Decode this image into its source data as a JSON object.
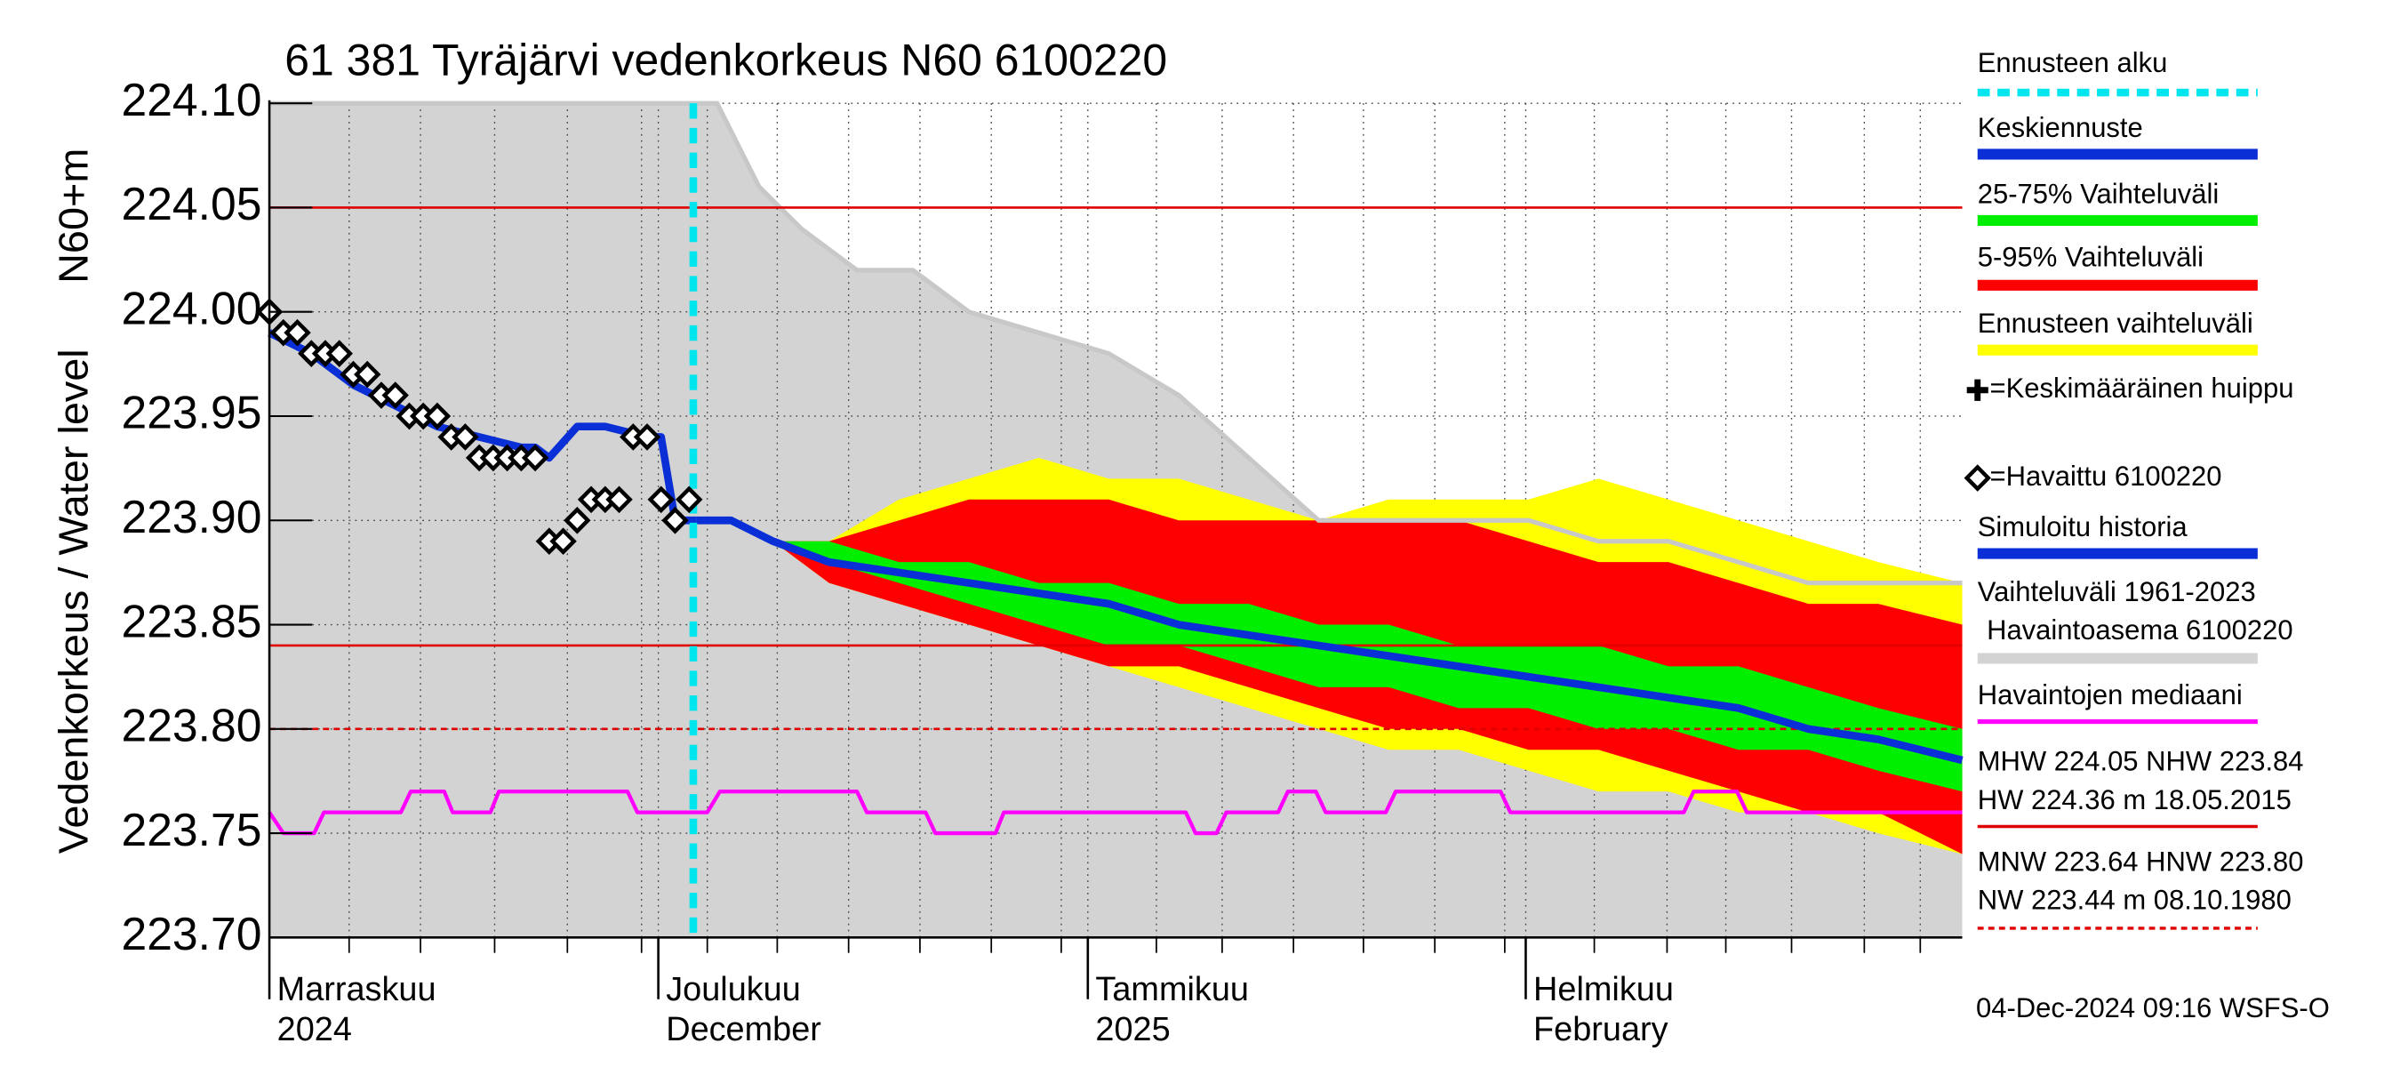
{
  "chart_data": {
    "type": "forecast",
    "title": "61 381 Tyräjärvi vedenkorkeus N60 6100220",
    "y_label": "Vedenkorkeus / Water level",
    "y_unit_label": "N60+m",
    "footer": "04-Dec-2024 09:16 WSFS-O",
    "xlim": [
      0,
      121
    ],
    "ylim": [
      223.7,
      224.1
    ],
    "yticks": [
      {
        "value": 224.1,
        "label": "224.10"
      },
      224.05,
      {
        "value": 224.0,
        "label": "224.00"
      },
      223.95,
      {
        "value": 223.9,
        "label": "223.90"
      },
      223.85,
      {
        "value": 223.8,
        "label": "223.80"
      },
      223.75,
      {
        "value": 223.7,
        "label": "223.70"
      }
    ],
    "xticks": [
      {
        "value": 0,
        "label": "Marraskuu",
        "sublabel": "2024"
      },
      {
        "value": 27.8,
        "label": "Joulukuu",
        "sublabel": "December"
      },
      {
        "value": 58.5,
        "label": "Tammikuu",
        "sublabel": "2025"
      },
      {
        "value": 89.8,
        "label": "Helmikuu",
        "sublabel": "February"
      }
    ],
    "xgrid": [
      5.7,
      10.8,
      16.1,
      21.3,
      26.6,
      31.3,
      36.3,
      41.4,
      46.5,
      51.6,
      56.6,
      63.4,
      68.1,
      73.2,
      78.2,
      83.3,
      88.3,
      94.7,
      99.9,
      104.1,
      108.8,
      114.0,
      118.0
    ],
    "grid": true,
    "forecast_start": {
      "name": "Ennusteen alku",
      "x": 30.3,
      "color": "#00e5ee"
    },
    "peak_label": "=Keskimääräinen huippu",
    "series": [
      {
        "name": "Vaihteluväli 1961-2023",
        "subname": "Havaintoasema 6100220",
        "kind": "area",
        "color": "#d3d3d3",
        "x": [
          0,
          30,
          32,
          35,
          38,
          42,
          46,
          50,
          55,
          60,
          65,
          70,
          75,
          80,
          85,
          90,
          95,
          100,
          105,
          110,
          115,
          121
        ],
        "values": [
          224.1,
          224.1,
          224.1,
          224.06,
          224.04,
          224.02,
          224.02,
          224.0,
          223.99,
          223.98,
          223.96,
          223.93,
          223.9,
          223.9,
          223.9,
          223.9,
          223.89,
          223.89,
          223.88,
          223.87,
          223.87,
          223.87
        ]
      },
      {
        "name": "Ennusteen vaihteluväli",
        "kind": "band",
        "color": "#ffff00",
        "x": [
          36,
          40,
          45,
          50,
          55,
          60,
          65,
          70,
          75,
          80,
          85,
          90,
          95,
          100,
          105,
          110,
          115,
          121
        ],
        "upper": [
          223.89,
          223.89,
          223.91,
          223.92,
          223.93,
          223.92,
          223.92,
          223.91,
          223.9,
          223.91,
          223.91,
          223.91,
          223.92,
          223.91,
          223.9,
          223.89,
          223.88,
          223.87
        ],
        "lower": [
          223.89,
          223.87,
          223.86,
          223.85,
          223.84,
          223.83,
          223.82,
          223.81,
          223.8,
          223.79,
          223.79,
          223.78,
          223.77,
          223.77,
          223.76,
          223.76,
          223.75,
          223.74
        ]
      },
      {
        "name": "5-95% Vaihteluväli",
        "kind": "band",
        "color": "#ff0000",
        "x": [
          36,
          40,
          45,
          50,
          55,
          60,
          65,
          70,
          75,
          80,
          85,
          90,
          95,
          100,
          105,
          110,
          115,
          121
        ],
        "upper": [
          223.89,
          223.89,
          223.9,
          223.91,
          223.91,
          223.91,
          223.9,
          223.9,
          223.9,
          223.9,
          223.9,
          223.89,
          223.88,
          223.88,
          223.87,
          223.86,
          223.86,
          223.85
        ],
        "lower": [
          223.89,
          223.87,
          223.86,
          223.85,
          223.84,
          223.83,
          223.83,
          223.82,
          223.81,
          223.8,
          223.8,
          223.79,
          223.79,
          223.78,
          223.77,
          223.76,
          223.76,
          223.74
        ]
      },
      {
        "name": "25-75% Vaihteluväli",
        "kind": "band",
        "color": "#00ee00",
        "x": [
          36,
          40,
          45,
          50,
          55,
          60,
          65,
          70,
          75,
          80,
          85,
          90,
          95,
          100,
          105,
          110,
          115,
          121
        ],
        "upper": [
          223.89,
          223.89,
          223.88,
          223.88,
          223.87,
          223.87,
          223.86,
          223.86,
          223.85,
          223.85,
          223.84,
          223.84,
          223.84,
          223.83,
          223.83,
          223.82,
          223.81,
          223.8
        ],
        "lower": [
          223.89,
          223.88,
          223.87,
          223.86,
          223.85,
          223.84,
          223.84,
          223.83,
          223.82,
          223.82,
          223.81,
          223.81,
          223.8,
          223.8,
          223.79,
          223.79,
          223.78,
          223.77
        ]
      },
      {
        "name": "Havaintojen mediaani",
        "kind": "line",
        "color": "#ff00ff",
        "width": 2.5,
        "x": [
          0,
          1,
          3.2,
          3.9,
          9.4,
          10.1,
          12.5,
          13.1,
          15.8,
          16.4,
          25.6,
          26.3,
          31.3,
          32.2,
          42,
          42.7,
          46.9,
          47.6,
          51.9,
          52.5,
          65.5,
          66.2,
          67.7,
          68.4,
          72.1,
          72.8,
          74.8,
          75.5,
          79.8,
          80.5,
          88,
          88.7,
          101.1,
          101.8,
          104.9,
          105.6,
          121
        ],
        "values": [
          223.76,
          223.75,
          223.75,
          223.76,
          223.76,
          223.77,
          223.77,
          223.76,
          223.76,
          223.77,
          223.77,
          223.76,
          223.76,
          223.77,
          223.77,
          223.76,
          223.76,
          223.75,
          223.75,
          223.76,
          223.76,
          223.75,
          223.75,
          223.76,
          223.76,
          223.77,
          223.77,
          223.76,
          223.76,
          223.77,
          223.77,
          223.76,
          223.76,
          223.77,
          223.77,
          223.76,
          223.76
        ]
      },
      {
        "name": "Simuloitu historia",
        "kind": "line",
        "color": "#0a2fd6",
        "width": 5,
        "x": [
          0,
          3,
          6,
          9,
          12,
          15,
          18,
          19,
          20,
          22,
          24,
          27,
          28,
          29,
          30.5
        ],
        "values": [
          223.99,
          223.98,
          223.965,
          223.955,
          223.945,
          223.94,
          223.935,
          223.935,
          223.93,
          223.945,
          223.945,
          223.94,
          223.94,
          223.9,
          223.9
        ]
      },
      {
        "name": "Keskiennuste",
        "kind": "line",
        "color": "#0a2fd6",
        "width": 5,
        "x": [
          30.5,
          33,
          36,
          40,
          45,
          50,
          55,
          60,
          65,
          70,
          75,
          80,
          85,
          90,
          95,
          100,
          105,
          110,
          115,
          121
        ],
        "values": [
          223.9,
          223.9,
          223.89,
          223.88,
          223.875,
          223.87,
          223.865,
          223.86,
          223.85,
          223.845,
          223.84,
          223.835,
          223.83,
          223.825,
          223.82,
          223.815,
          223.81,
          223.8,
          223.795,
          223.785
        ]
      },
      {
        "name": "=Havaittu 6100220",
        "kind": "scatter",
        "color": "#000000",
        "x": [
          0,
          1,
          2,
          3,
          4,
          5,
          6,
          7,
          8,
          9,
          10,
          11,
          12,
          13,
          14,
          15,
          16,
          17,
          18,
          19,
          20,
          21,
          22,
          23,
          24,
          25,
          26,
          27,
          28,
          29,
          30
        ],
        "values": [
          224.0,
          223.99,
          223.99,
          223.98,
          223.98,
          223.98,
          223.97,
          223.97,
          223.96,
          223.96,
          223.95,
          223.95,
          223.95,
          223.94,
          223.94,
          223.93,
          223.93,
          223.93,
          223.93,
          223.93,
          223.89,
          223.89,
          223.9,
          223.91,
          223.91,
          223.91,
          223.94,
          223.94,
          223.91,
          223.9,
          223.91
        ]
      }
    ],
    "hlines": [
      {
        "value": 224.05,
        "color": "#e00000",
        "style": "solid"
      },
      {
        "value": 223.84,
        "color": "#e00000",
        "style": "solid"
      },
      {
        "value": 223.8,
        "color": "#e00000",
        "style": "dashed"
      }
    ],
    "stats": [
      {
        "lines": [
          "MHW 224.05 NHW 223.84",
          "HW 224.36 m 18.05.2015"
        ],
        "color": "#e00000",
        "style": "solid"
      },
      {
        "lines": [
          "MNW 223.64 HNW 223.80",
          "NW 223.44 m 08.10.1980"
        ],
        "color": "#e00000",
        "style": "dashed"
      }
    ]
  }
}
